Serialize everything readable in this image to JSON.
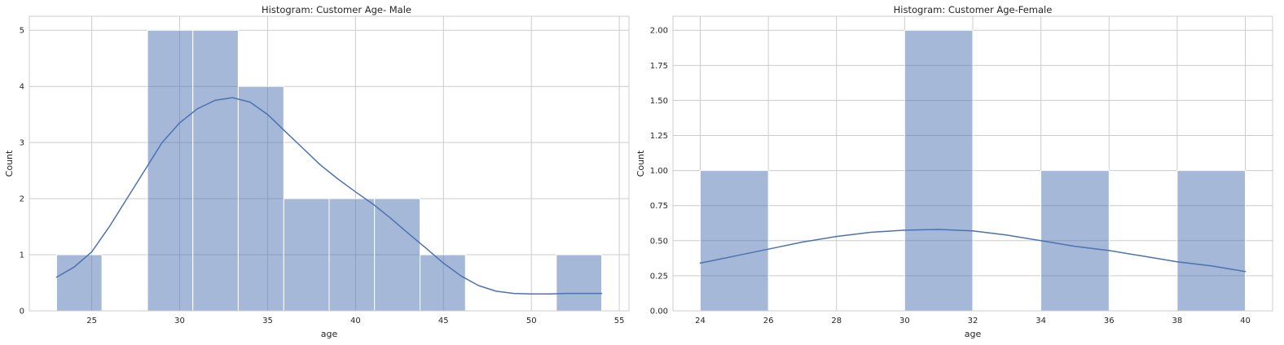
{
  "chart_data": [
    {
      "type": "bar",
      "title": "Histogram: Customer Age- Male",
      "xlabel": "age",
      "ylabel": "Count",
      "xlim": [
        21.45,
        55.55
      ],
      "ylim": [
        0,
        5.25
      ],
      "xticks": [
        25,
        30,
        35,
        40,
        45,
        50,
        55
      ],
      "yticks": [
        0,
        1,
        2,
        3,
        4,
        5
      ],
      "ytick_labels": [
        "0",
        "1",
        "2",
        "3",
        "4",
        "5"
      ],
      "grid": true,
      "bin_edges": [
        23.0,
        25.58,
        28.17,
        30.75,
        33.33,
        35.92,
        38.5,
        41.08,
        43.67,
        46.25,
        48.83,
        51.42,
        54.0
      ],
      "counts": [
        1,
        0,
        5,
        5,
        4,
        2,
        2,
        2,
        1,
        0,
        0,
        1
      ],
      "kde": {
        "x": [
          23,
          24,
          25,
          26,
          27,
          28,
          29,
          30,
          31,
          32,
          33,
          34,
          35,
          36,
          37,
          38,
          39,
          40,
          41,
          42,
          43,
          44,
          45,
          46,
          47,
          48,
          49,
          50,
          51,
          52,
          53,
          54
        ],
        "y": [
          0.6,
          0.78,
          1.05,
          1.5,
          2.0,
          2.5,
          3.0,
          3.35,
          3.6,
          3.75,
          3.8,
          3.72,
          3.5,
          3.2,
          2.9,
          2.6,
          2.35,
          2.12,
          1.9,
          1.65,
          1.38,
          1.12,
          0.85,
          0.62,
          0.45,
          0.35,
          0.31,
          0.3,
          0.3,
          0.31,
          0.31,
          0.31
        ]
      },
      "bar_color": "#4c72b0",
      "line_color": "#4c72b0"
    },
    {
      "type": "bar",
      "title": "Histogram:  Customer Age-Female",
      "xlabel": "age",
      "ylabel": "Count",
      "xlim": [
        23.2,
        40.8
      ],
      "ylim": [
        0,
        2.1
      ],
      "xticks": [
        24,
        26,
        28,
        30,
        32,
        34,
        36,
        38,
        40
      ],
      "yticks": [
        0,
        0.25,
        0.5,
        0.75,
        1.0,
        1.25,
        1.5,
        1.75,
        2.0
      ],
      "ytick_labels": [
        "0.00",
        "0.25",
        "0.50",
        "0.75",
        "1.00",
        "1.25",
        "1.50",
        "1.75",
        "2.00"
      ],
      "grid": true,
      "bin_edges": [
        24,
        26,
        28,
        30,
        32,
        34,
        36,
        38,
        40
      ],
      "counts": [
        1,
        0,
        0,
        2,
        0,
        1,
        0,
        1
      ],
      "kde": {
        "x": [
          24,
          25,
          26,
          27,
          28,
          29,
          30,
          31,
          32,
          33,
          34,
          35,
          36,
          37,
          38,
          39,
          40
        ],
        "y": [
          0.34,
          0.39,
          0.44,
          0.49,
          0.53,
          0.56,
          0.575,
          0.58,
          0.57,
          0.54,
          0.5,
          0.46,
          0.43,
          0.39,
          0.35,
          0.32,
          0.28
        ]
      },
      "bar_color": "#4c72b0",
      "line_color": "#4c72b0"
    }
  ]
}
